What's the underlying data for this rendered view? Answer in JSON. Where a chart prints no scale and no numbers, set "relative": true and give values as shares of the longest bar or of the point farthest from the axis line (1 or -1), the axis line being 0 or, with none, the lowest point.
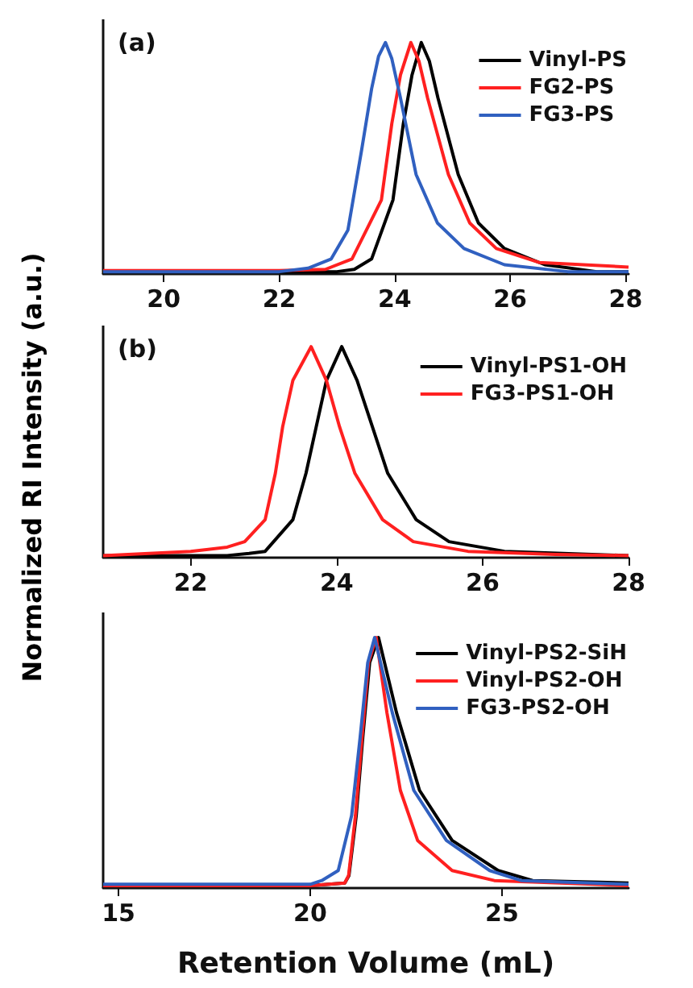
{
  "chart_data": [
    {
      "type": "line",
      "title": "(a)",
      "relative": true,
      "xlim": [
        18.95,
        28.05
      ],
      "xticks": [
        20,
        22,
        24,
        26,
        28
      ],
      "legend": "top right",
      "series": [
        {
          "name": "Vinyl-PS",
          "color": "#000000",
          "x": [
            18.95,
            20,
            22,
            23,
            23.3,
            23.6,
            23.97,
            24.15,
            24.3,
            24.46,
            24.6,
            24.75,
            25.1,
            25.45,
            25.9,
            26.6,
            27.5,
            28.05
          ],
          "values": [
            0.01,
            0.01,
            0.01,
            0.01,
            0.02,
            0.065,
            0.32,
            0.65,
            0.86,
            1,
            0.92,
            0.76,
            0.43,
            0.22,
            0.11,
            0.04,
            0.01,
            0.01
          ]
        },
        {
          "name": "FG2-PS",
          "color": "#ff2020",
          "x": [
            18.95,
            20,
            22,
            22.8,
            23.26,
            23.77,
            23.95,
            24.1,
            24.28,
            24.42,
            24.57,
            24.93,
            25.3,
            25.76,
            26.5,
            28.05
          ],
          "values": [
            0.015,
            0.015,
            0.015,
            0.02,
            0.065,
            0.32,
            0.65,
            0.86,
            1,
            0.92,
            0.76,
            0.43,
            0.22,
            0.11,
            0.05,
            0.03
          ]
        },
        {
          "name": "FG3-PS",
          "color": "#3060c0",
          "x": [
            18.95,
            20,
            22,
            22.5,
            22.9,
            23.19,
            23.43,
            23.6,
            23.72,
            23.84,
            23.95,
            24.1,
            24.37,
            24.74,
            25.2,
            25.9,
            27,
            28.05
          ],
          "values": [
            0.01,
            0.01,
            0.01,
            0.025,
            0.065,
            0.19,
            0.54,
            0.8,
            0.94,
            1,
            0.93,
            0.76,
            0.43,
            0.22,
            0.11,
            0.04,
            0.01,
            0.01
          ]
        }
      ]
    },
    {
      "type": "line",
      "title": "(b)",
      "ylabel": "Normalized RI Intensity (a.u.)",
      "relative": true,
      "xlim": [
        20.8,
        28
      ],
      "xticks": [
        22,
        24,
        26,
        28
      ],
      "legend": "top right",
      "series": [
        {
          "name": "Vinyl-PS1-OH",
          "color": "#000000",
          "x": [
            20.8,
            22,
            22.5,
            22.8,
            23.02,
            23.4,
            23.58,
            23.72,
            23.86,
            24.07,
            24.28,
            24.49,
            24.7,
            25.09,
            25.54,
            26.3,
            27.5,
            28
          ],
          "values": [
            0.01,
            0.01,
            0.01,
            0.02,
            0.03,
            0.18,
            0.4,
            0.62,
            0.84,
            1,
            0.84,
            0.62,
            0.4,
            0.18,
            0.076,
            0.03,
            0.015,
            0.01
          ]
        },
        {
          "name": "FG3-PS1-OH",
          "color": "#ff2020",
          "x": [
            20.8,
            22,
            22.5,
            22.74,
            23.02,
            23.16,
            23.26,
            23.4,
            23.65,
            23.86,
            24.04,
            24.25,
            24.63,
            25.05,
            25.8,
            27,
            28
          ],
          "values": [
            0.01,
            0.03,
            0.05,
            0.076,
            0.18,
            0.4,
            0.62,
            0.84,
            1,
            0.84,
            0.62,
            0.4,
            0.18,
            0.076,
            0.03,
            0.015,
            0.01
          ]
        }
      ]
    },
    {
      "type": "line",
      "xlabel": "Retention Volume (mL)",
      "relative": true,
      "xlim": [
        14.6,
        28.3
      ],
      "xticks": [
        15,
        20,
        25
      ],
      "legend": "top right",
      "series": [
        {
          "name": "Vinyl-PS2-SiH",
          "color": "#000000",
          "x": [
            14.6,
            18,
            20,
            20.9,
            21.01,
            21.2,
            21.37,
            21.55,
            21.78,
            22.25,
            22.85,
            23.7,
            24.9,
            25.8,
            28.3
          ],
          "values": [
            0.01,
            0.01,
            0.01,
            0.02,
            0.05,
            0.29,
            0.6,
            0.9,
            1,
            0.7,
            0.39,
            0.19,
            0.07,
            0.03,
            0.02
          ]
        },
        {
          "name": "Vinyl-PS2-OH",
          "color": "#ff2020",
          "x": [
            14.6,
            18,
            20,
            20.9,
            21,
            21.18,
            21.35,
            21.52,
            21.72,
            22,
            22.35,
            22.8,
            23.7,
            24.8,
            28.3
          ],
          "values": [
            0.01,
            0.01,
            0.01,
            0.02,
            0.05,
            0.29,
            0.6,
            0.9,
            1,
            0.7,
            0.39,
            0.19,
            0.07,
            0.03,
            0.01
          ]
        },
        {
          "name": "FG3-PS2-OH",
          "color": "#3060c0",
          "x": [
            14.6,
            18,
            20,
            20.3,
            20.73,
            21.08,
            21.3,
            21.5,
            21.68,
            22.14,
            22.7,
            23.55,
            24.68,
            25.5,
            28.3
          ],
          "values": [
            0.015,
            0.015,
            0.015,
            0.03,
            0.07,
            0.29,
            0.6,
            0.9,
            1,
            0.7,
            0.39,
            0.19,
            0.07,
            0.03,
            0.015
          ]
        }
      ]
    }
  ]
}
